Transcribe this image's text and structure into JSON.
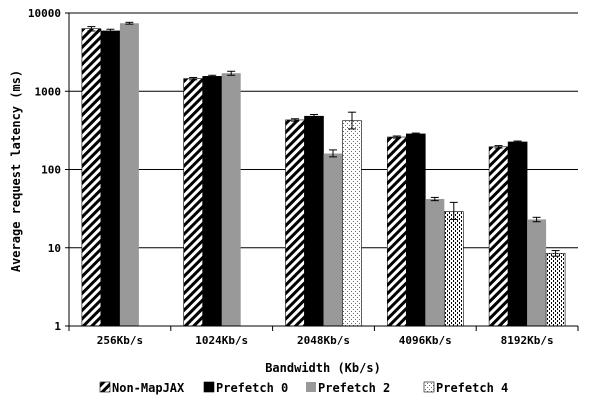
{
  "chart_data": {
    "type": "bar",
    "xlabel": "Bandwidth (Kb/s)",
    "ylabel": "Average request latency (ms)",
    "yscale": "log",
    "ylim": [
      1,
      10000
    ],
    "yticks": [
      "1",
      "10",
      "100",
      "1000",
      "10000"
    ],
    "grid": true,
    "legend_position": "bottom",
    "categories": [
      "256Kb/s",
      "1024Kb/s",
      "2048Kb/s",
      "4096Kb/s",
      "8192Kb/s"
    ],
    "series": [
      {
        "name": "Non-MapJAX",
        "pattern": "diagonal-stripes",
        "color": "#000000",
        "values": [
          6300,
          1450,
          430,
          260,
          195
        ],
        "err_low": [
          5900,
          1400,
          415,
          252,
          188
        ],
        "err_high": [
          6700,
          1500,
          445,
          268,
          202
        ]
      },
      {
        "name": "Prefetch 0",
        "pattern": "solid",
        "color": "#000000",
        "values": [
          5900,
          1550,
          480,
          285,
          225
        ],
        "err_low": [
          5600,
          1500,
          455,
          278,
          219
        ],
        "err_high": [
          6200,
          1600,
          505,
          292,
          231
        ]
      },
      {
        "name": "Prefetch 2",
        "pattern": "solid",
        "color": "#999999",
        "values": [
          7400,
          1700,
          160,
          42,
          23
        ],
        "err_low": [
          7200,
          1600,
          145,
          40,
          21.5
        ],
        "err_high": [
          7600,
          1800,
          178,
          44,
          24.5
        ]
      },
      {
        "name": "Prefetch 4",
        "pattern": "dotted",
        "color": "#ffffff",
        "values": [
          null,
          null,
          420,
          29,
          8.5
        ],
        "err_low": [
          null,
          null,
          330,
          23,
          7.8
        ],
        "err_high": [
          null,
          null,
          540,
          38,
          9.2
        ]
      }
    ]
  }
}
